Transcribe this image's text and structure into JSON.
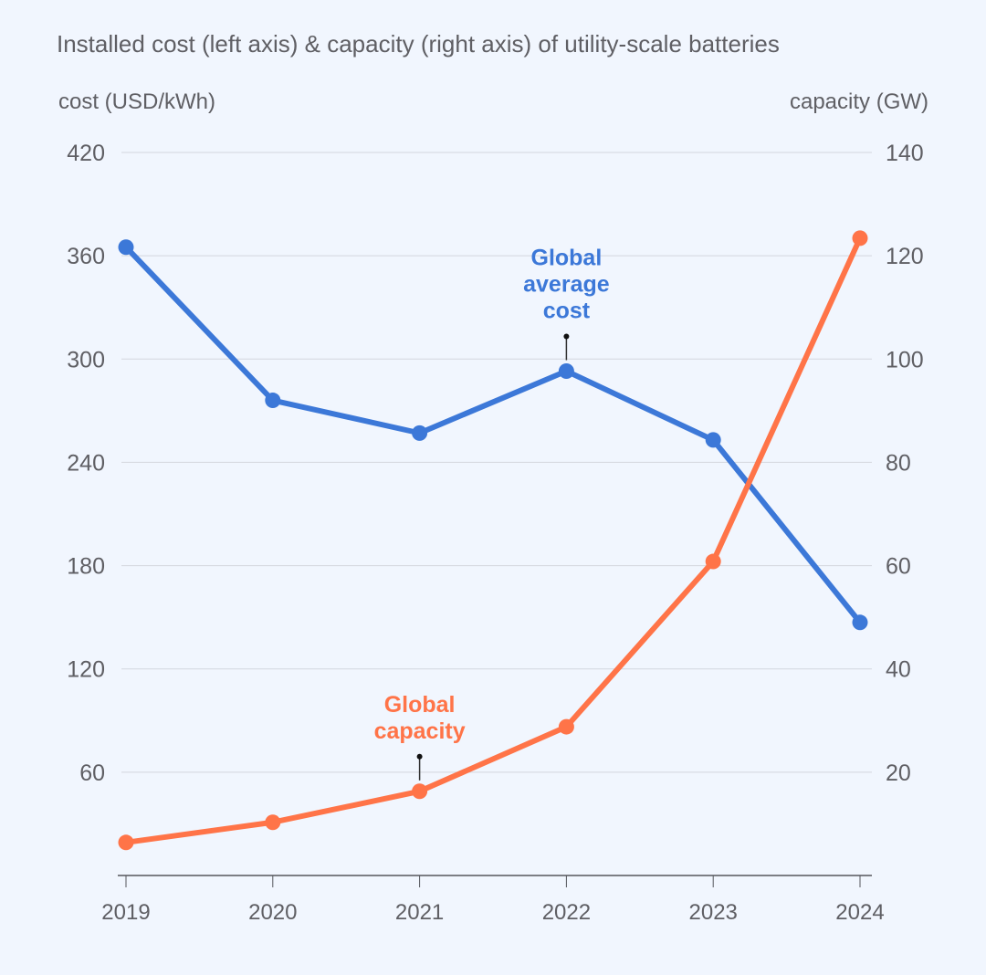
{
  "chart_data": {
    "type": "line",
    "title": "Installed cost (left axis) & capacity (right axis) of utility-scale batteries",
    "xlabel": "",
    "ylabel_left": "cost (USD/kWh)",
    "ylabel_right": "capacity (GW)",
    "categories": [
      "2019",
      "2020",
      "2021",
      "2022",
      "2023",
      "2024"
    ],
    "y_left": {
      "range": [
        0,
        420
      ],
      "ticks": [
        60,
        120,
        180,
        240,
        300,
        360,
        420
      ]
    },
    "y_right": {
      "range": [
        0,
        140
      ],
      "ticks": [
        20,
        40,
        60,
        80,
        100,
        120,
        140
      ]
    },
    "grid": true,
    "series": [
      {
        "name": "Global average cost",
        "axis": "left",
        "color": "#3c78d8",
        "values": [
          365,
          276,
          257,
          293,
          253,
          147
        ],
        "label_lines": [
          "Global",
          "average",
          "cost"
        ],
        "label_at_index": 3
      },
      {
        "name": "Global capacity",
        "axis": "right",
        "color": "#ff7448",
        "values": [
          6.4,
          10.3,
          16.3,
          28.8,
          60.8,
          123.4
        ],
        "label_lines": [
          "Global",
          "capacity"
        ],
        "label_at_index": 2
      }
    ]
  }
}
